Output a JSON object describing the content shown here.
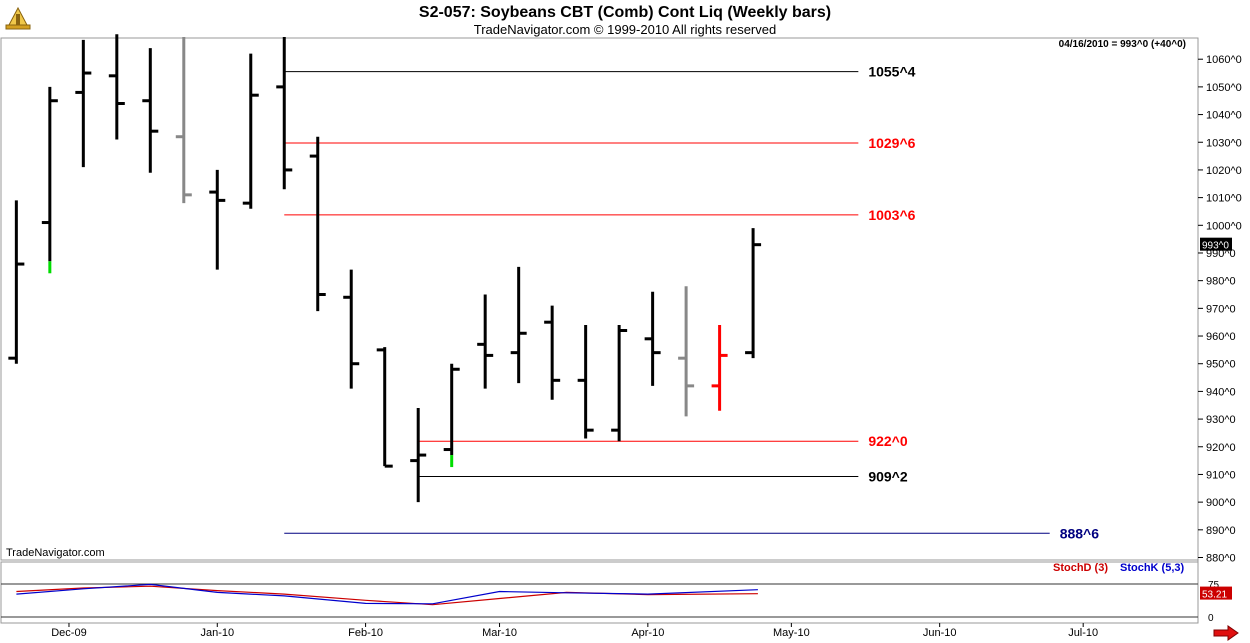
{
  "header": {
    "title": "S2-057:  Soybeans CBT (Comb) Cont Liq  (Weekly bars)",
    "subtitle": "TradeNavigator.com © 1999-2010 All rights reserved",
    "logo_icon": "trade-navigator-logo-icon"
  },
  "watermark": "TradeNavigator.com",
  "last_quote": "04/16/2010 = 993^0 (+40^0)",
  "last_price_tag": "993^0",
  "colors": {
    "bar_default": "#000000",
    "bar_up_marker": "#00dd00",
    "bar_gray": "#888888",
    "bar_red": "#ff0000",
    "line_black": "#000000",
    "line_red": "#ff0000",
    "line_blue": "#000080",
    "stoch_d": "#cc0000",
    "stoch_k": "#0000cc",
    "stoch_value_bg": "#cc0000"
  },
  "chart_data": {
    "type": "ohlc",
    "unit": "cents/bushel (eighths notation)",
    "y_range": [
      880,
      1065
    ],
    "y_ticks": [
      "1060^0",
      "1050^0",
      "1040^0",
      "1030^0",
      "1020^0",
      "1010^0",
      "1000^0",
      "990^0",
      "980^0",
      "970^0",
      "960^0",
      "950^0",
      "940^0",
      "930^0",
      "920^0",
      "910^0",
      "900^0",
      "890^0",
      "880^0"
    ],
    "x_range": [
      "2009-11-17",
      "2010-07-25"
    ],
    "x_ticks": [
      {
        "label": "Dec-09",
        "date": "2009-12-01"
      },
      {
        "label": "Jan-10",
        "date": "2010-01-01"
      },
      {
        "label": "Feb-10",
        "date": "2010-02-01"
      },
      {
        "label": "Mar-10",
        "date": "2010-03-01"
      },
      {
        "label": "Apr-10",
        "date": "2010-04-01"
      },
      {
        "label": "May-10",
        "date": "2010-05-01"
      },
      {
        "label": "Jun-10",
        "date": "2010-06-01"
      },
      {
        "label": "Jul-10",
        "date": "2010-07-01"
      }
    ],
    "bars": [
      {
        "date": "2009-11-20",
        "open": 952,
        "high": 1009,
        "low": 950,
        "close": 986,
        "color": "default"
      },
      {
        "date": "2009-11-27",
        "open": 1001,
        "high": 1050,
        "low": 987,
        "close": 1045,
        "color": "default",
        "marker": "up"
      },
      {
        "date": "2009-12-04",
        "open": 1048,
        "high": 1067,
        "low": 1021,
        "close": 1055,
        "color": "default"
      },
      {
        "date": "2009-12-11",
        "open": 1054,
        "high": 1069,
        "low": 1031,
        "close": 1044,
        "color": "default"
      },
      {
        "date": "2009-12-18",
        "open": 1045,
        "high": 1064,
        "low": 1019,
        "close": 1034,
        "color": "default"
      },
      {
        "date": "2009-12-25",
        "open": 1032,
        "high": 1068,
        "low": 1008,
        "close": 1011,
        "color": "gray"
      },
      {
        "date": "2010-01-01",
        "open": 1012,
        "high": 1020,
        "low": 984,
        "close": 1009,
        "color": "default"
      },
      {
        "date": "2010-01-08",
        "open": 1008,
        "high": 1062,
        "low": 1006,
        "close": 1047,
        "color": "default"
      },
      {
        "date": "2010-01-15",
        "open": 1050,
        "high": 1068,
        "low": 1013,
        "close": 1020,
        "color": "default"
      },
      {
        "date": "2010-01-22",
        "open": 1025,
        "high": 1032,
        "low": 969,
        "close": 975,
        "color": "default"
      },
      {
        "date": "2010-01-29",
        "open": 974,
        "high": 984,
        "low": 941,
        "close": 950,
        "color": "default"
      },
      {
        "date": "2010-02-05",
        "open": 955,
        "high": 956,
        "low": 913,
        "close": 913,
        "color": "default"
      },
      {
        "date": "2010-02-12",
        "open": 915,
        "high": 934,
        "low": 900,
        "close": 917,
        "color": "default"
      },
      {
        "date": "2010-02-19",
        "open": 919,
        "high": 950,
        "low": 917,
        "close": 948,
        "color": "default",
        "marker": "up"
      },
      {
        "date": "2010-02-26",
        "open": 957,
        "high": 975,
        "low": 941,
        "close": 953,
        "color": "default"
      },
      {
        "date": "2010-03-05",
        "open": 954,
        "high": 985,
        "low": 943,
        "close": 961,
        "color": "default"
      },
      {
        "date": "2010-03-12",
        "open": 965,
        "high": 971,
        "low": 937,
        "close": 944,
        "color": "default"
      },
      {
        "date": "2010-03-19",
        "open": 944,
        "high": 964,
        "low": 923,
        "close": 926,
        "color": "default"
      },
      {
        "date": "2010-03-26",
        "open": 926,
        "high": 964,
        "low": 922,
        "close": 962,
        "color": "default"
      },
      {
        "date": "2010-04-02",
        "open": 959,
        "high": 976,
        "low": 942,
        "close": 954,
        "color": "default"
      },
      {
        "date": "2010-04-09",
        "open": 952,
        "high": 978,
        "low": 931,
        "close": 942,
        "color": "gray"
      },
      {
        "date": "2010-04-16",
        "open": 942,
        "high": 964,
        "low": 933,
        "close": 953,
        "color": "red"
      },
      {
        "date": "2010-04-23",
        "open": 954,
        "high": 999,
        "low": 952,
        "close": 993,
        "color": "default"
      }
    ],
    "levels": [
      {
        "label": "1055^4",
        "value": 1055.5,
        "color": "black",
        "start": "2010-01-15",
        "end": "2010-05-15"
      },
      {
        "label": "1029^6",
        "value": 1029.75,
        "color": "red",
        "start": "2010-01-15",
        "end": "2010-05-15"
      },
      {
        "label": "1003^6",
        "value": 1003.75,
        "color": "red",
        "start": "2010-01-15",
        "end": "2010-05-15"
      },
      {
        "label": "922^0",
        "value": 922,
        "color": "red",
        "start": "2010-02-12",
        "end": "2010-05-15"
      },
      {
        "label": "909^2",
        "value": 909.25,
        "color": "black",
        "start": "2010-02-12",
        "end": "2010-05-15"
      },
      {
        "label": "888^6",
        "value": 888.75,
        "color": "blue",
        "start": "2010-01-15",
        "end": "2010-06-24"
      }
    ],
    "indicator": {
      "stochd_label": "StochD (3)",
      "stochk_label": "StochK (5,3)",
      "y_range": [
        0,
        100
      ],
      "y_ticks": [
        "75",
        "0"
      ],
      "value_tag": "53.21",
      "stoch_d": [
        {
          "date": "2009-11-20",
          "value": 58
        },
        {
          "date": "2009-12-04",
          "value": 66
        },
        {
          "date": "2009-12-18",
          "value": 70
        },
        {
          "date": "2010-01-01",
          "value": 60
        },
        {
          "date": "2010-01-15",
          "value": 52
        },
        {
          "date": "2010-02-01",
          "value": 38
        },
        {
          "date": "2010-02-15",
          "value": 28
        },
        {
          "date": "2010-03-01",
          "value": 42
        },
        {
          "date": "2010-03-15",
          "value": 56
        },
        {
          "date": "2010-04-01",
          "value": 51
        },
        {
          "date": "2010-04-24",
          "value": 53
        }
      ],
      "stoch_k": [
        {
          "date": "2009-11-20",
          "value": 52
        },
        {
          "date": "2009-12-04",
          "value": 64
        },
        {
          "date": "2009-12-18",
          "value": 74
        },
        {
          "date": "2010-01-01",
          "value": 56
        },
        {
          "date": "2010-01-15",
          "value": 48
        },
        {
          "date": "2010-02-01",
          "value": 31
        },
        {
          "date": "2010-02-15",
          "value": 30
        },
        {
          "date": "2010-03-01",
          "value": 58
        },
        {
          "date": "2010-03-15",
          "value": 55
        },
        {
          "date": "2010-04-01",
          "value": 52
        },
        {
          "date": "2010-04-24",
          "value": 62
        }
      ]
    }
  }
}
